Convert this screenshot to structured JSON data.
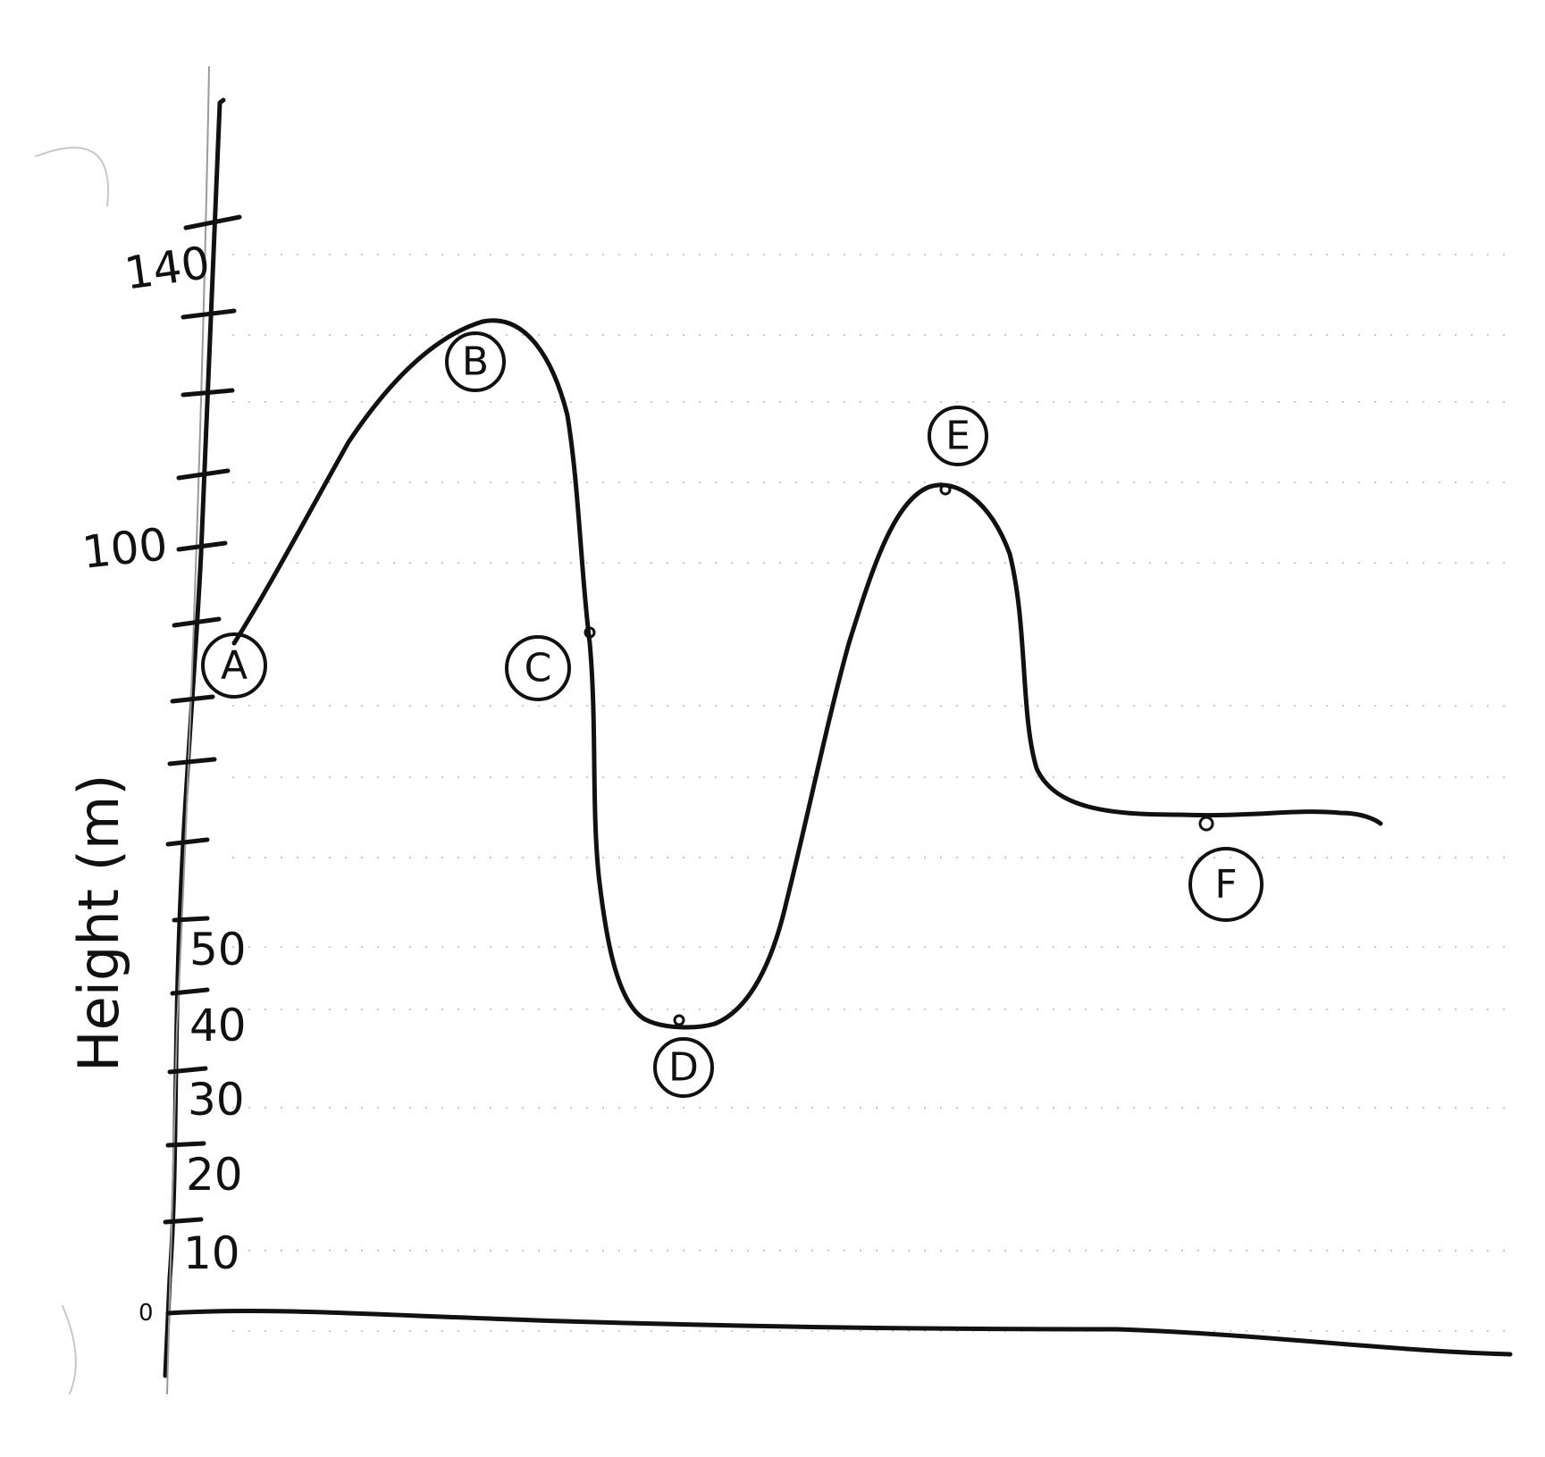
{
  "axis": {
    "y_title": "Height (m)",
    "tick_labels": [
      "140",
      "100",
      "50",
      "40",
      "30",
      "20",
      "10",
      "0"
    ]
  },
  "points": [
    {
      "label": "A"
    },
    {
      "label": "B"
    },
    {
      "label": "C"
    },
    {
      "label": "D"
    },
    {
      "label": "E"
    },
    {
      "label": "F"
    }
  ]
}
